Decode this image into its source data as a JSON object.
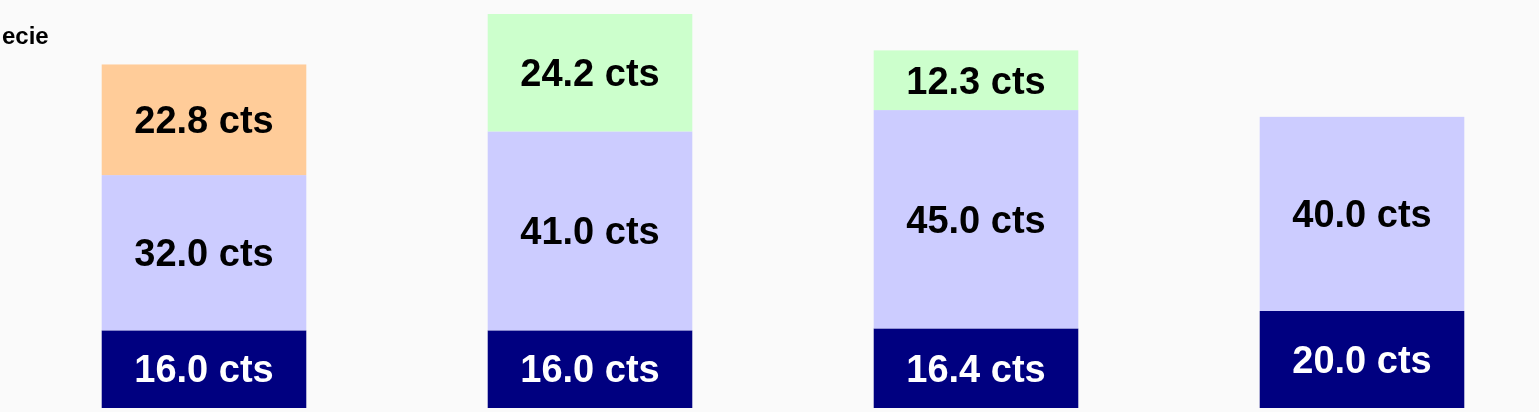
{
  "chart_data": {
    "type": "bar",
    "title": "ecie",
    "stacked": true,
    "categories": [
      null,
      null,
      null,
      null
    ],
    "series": [
      {
        "color": "#000080",
        "values": [
          16.0,
          16.0,
          16.4,
          20.0
        ],
        "value_labels": [
          "16.0 cts",
          "16.0 cts",
          "16.4 cts",
          "20.0 cts"
        ]
      },
      {
        "color": "#ccccff",
        "values": [
          32.0,
          41.0,
          45.0,
          40.0
        ],
        "value_labels": [
          "32.0 cts",
          "41.0 cts",
          "45.0 cts",
          "40.0 cts"
        ]
      },
      {
        "color": "#ffcc99",
        "values": [
          22.8,
          null,
          null,
          null
        ],
        "value_labels": [
          "22.8 cts",
          null,
          null,
          null
        ]
      },
      {
        "color": "#ccffcc",
        "values": [
          null,
          24.2,
          12.3,
          null
        ],
        "value_labels": [
          null,
          "24.2 cts",
          "12.3 cts",
          null
        ]
      }
    ]
  }
}
